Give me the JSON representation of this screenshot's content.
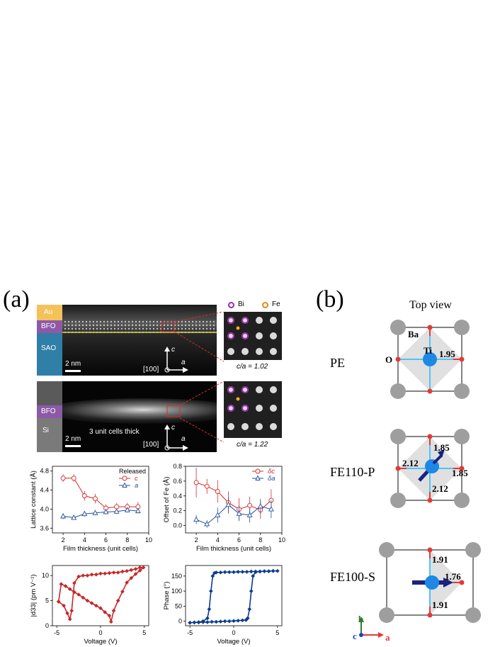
{
  "panel_a": {
    "label": "(a)",
    "tem_top": {
      "layers": [
        "Au",
        "BFO",
        "SAO"
      ],
      "scale": "2 nm",
      "axis_zone": "[100]",
      "axis_c": "c",
      "axis_a": "a",
      "inset_ratio": "c/a = 1.02",
      "legend_bi": "Bi",
      "legend_fe": "Fe"
    },
    "tem_bottom": {
      "layers": [
        "BFO",
        "Si"
      ],
      "caption": "3 unit cells thick",
      "scale": "2 nm",
      "axis_zone": "[100]",
      "axis_c": "c",
      "axis_a": "a",
      "inset_ratio": "c/a = 1.22"
    }
  },
  "panel_b": {
    "label": "(b)",
    "top_view": "Top view",
    "rows": [
      {
        "name": "PE",
        "atom_ba": "Ba",
        "atom_ti": "Ti",
        "atom_o": "O",
        "bond": "1.95"
      },
      {
        "name": "FE110-P",
        "bond_top": "1.85",
        "bond_right": "1.85",
        "bond_left": "2.12",
        "bond_bottom": "2.12"
      },
      {
        "name": "FE100-S",
        "bond_top": "1.91",
        "bond_right": "1.76",
        "bond_bottom": "1.91"
      }
    ],
    "axes": {
      "b": "b",
      "c": "c",
      "a": "a"
    },
    "colors": {
      "ti": "#1e88e5",
      "o": "#e02020",
      "ba": "#a0a0a0",
      "arrow": "#1a237e"
    }
  },
  "chart_data": [
    {
      "type": "line",
      "xlabel": "Film thickness (unit cells)",
      "ylabel": "Lattice constant (Å)",
      "legend_title": "Released",
      "xlim": [
        1,
        10
      ],
      "ylim": [
        3.5,
        4.9
      ],
      "xticks": [
        2,
        4,
        6,
        8,
        10
      ],
      "yticks": [
        3.6,
        4.0,
        4.4,
        4.8
      ],
      "x": [
        2,
        3,
        4,
        5,
        6,
        7,
        8,
        9
      ],
      "series": [
        {
          "name": "c",
          "color": "#d62728",
          "marker": "circle",
          "values": [
            4.65,
            4.65,
            4.28,
            4.22,
            4.02,
            4.05,
            4.05,
            4.05
          ],
          "err": [
            0.08,
            0.08,
            0.1,
            0.1,
            0.08,
            0.08,
            0.08,
            0.1
          ]
        },
        {
          "name": "a",
          "color": "#1f4e9c",
          "marker": "triangle",
          "values": [
            3.85,
            3.82,
            3.9,
            3.92,
            3.94,
            3.95,
            3.98,
            3.96
          ],
          "err": [
            0.06,
            0.04,
            0.06,
            0.05,
            0.05,
            0.05,
            0.05,
            0.05
          ]
        }
      ]
    },
    {
      "type": "line",
      "xlabel": "Film thickness (unit cells)",
      "ylabel": "Offset of Fe (Å)",
      "xlim": [
        1,
        10
      ],
      "ylim": [
        -0.1,
        0.8
      ],
      "xticks": [
        2,
        4,
        6,
        8,
        10
      ],
      "yticks": [
        0.0,
        0.2,
        0.4,
        0.6,
        0.8
      ],
      "x": [
        2,
        3,
        4,
        5,
        6,
        7,
        8,
        9
      ],
      "series": [
        {
          "name": "δc",
          "color": "#d62728",
          "marker": "circle",
          "values": [
            0.58,
            0.53,
            0.46,
            0.31,
            0.22,
            0.27,
            0.21,
            0.34
          ],
          "err": [
            0.2,
            0.1,
            0.15,
            0.15,
            0.15,
            0.12,
            0.12,
            0.15
          ]
        },
        {
          "name": "δa",
          "color": "#1f4e9c",
          "marker": "triangle",
          "values": [
            0.08,
            0.02,
            0.14,
            0.28,
            0.16,
            0.14,
            0.26,
            0.22
          ],
          "err": [
            0.06,
            0.05,
            0.1,
            0.1,
            0.1,
            0.1,
            0.1,
            0.12
          ]
        }
      ]
    },
    {
      "type": "line",
      "xlabel": "Voltage (V)",
      "ylabel": "|d33| (pm V⁻¹)",
      "xlim": [
        -5.5,
        5.5
      ],
      "ylim": [
        0,
        12
      ],
      "xticks": [
        -5,
        0,
        5
      ],
      "yticks": [
        0,
        5,
        10
      ],
      "series": [
        {
          "name": "",
          "color": "#c62828",
          "x": [
            -4.8,
            -4.2,
            -3.8,
            -3.5,
            -3.3,
            -3.0,
            -2.5,
            -2.0,
            -1.5,
            -1.0,
            -0.5,
            0.0,
            0.5,
            1.0,
            1.5,
            2.0,
            2.5,
            3.0,
            3.5,
            4.0,
            4.5,
            4.9,
            4.5,
            4.0,
            3.5,
            3.0,
            2.5,
            2.0,
            1.5,
            1.2,
            1.0,
            0.5,
            0.0,
            -0.5,
            -1.0,
            -1.5,
            -2.0,
            -2.5,
            -3.0,
            -3.5,
            -4.0,
            -4.5,
            -4.8
          ],
          "y": [
            4.8,
            4.0,
            2.5,
            1.3,
            3.0,
            8.5,
            9.8,
            10.0,
            10.0,
            10.2,
            10.2,
            10.4,
            10.4,
            10.5,
            10.6,
            10.6,
            10.8,
            10.9,
            11.1,
            11.3,
            11.6,
            11.6,
            11.0,
            10.3,
            9.5,
            8.6,
            6.8,
            5.0,
            3.0,
            0.8,
            2.0,
            2.7,
            3.5,
            4.0,
            4.5,
            5.0,
            5.6,
            6.2,
            6.7,
            7.3,
            7.9,
            8.3,
            4.8
          ]
        }
      ]
    },
    {
      "type": "line",
      "xlabel": "Voltage (V)",
      "ylabel": "Phase (°)",
      "xlim": [
        -5.5,
        5.5
      ],
      "ylim": [
        -15,
        185
      ],
      "xticks": [
        -5,
        0,
        5
      ],
      "yticks": [
        0,
        50,
        100,
        150
      ],
      "series": [
        {
          "name": "",
          "color": "#0d3d8c",
          "x": [
            -5.0,
            -4.5,
            -4.0,
            -3.5,
            -3.0,
            -2.8,
            -2.6,
            -2.4,
            -2.2,
            -2.0,
            -1.5,
            -1.0,
            -0.5,
            0.0,
            0.5,
            1.0,
            1.5,
            2.0,
            2.5,
            3.0,
            3.5,
            4.0,
            4.5,
            5.0,
            4.5,
            4.0,
            3.5,
            3.0,
            2.5,
            2.2,
            2.0,
            1.8,
            1.6,
            1.4,
            1.0,
            0.5,
            0.0,
            -0.5,
            -1.0,
            -1.5,
            -2.0,
            -2.5,
            -3.0,
            -3.5,
            -4.0,
            -4.5,
            -5.0
          ],
          "y": [
            -5,
            -4,
            -3,
            0,
            10,
            40,
            100,
            150,
            160,
            162,
            162,
            163,
            163,
            163,
            164,
            164,
            164,
            165,
            165,
            165,
            166,
            166,
            167,
            167,
            167,
            166,
            166,
            165,
            163,
            150,
            100,
            40,
            10,
            4,
            3,
            2,
            1,
            0,
            0,
            -1,
            -2,
            -2,
            -3,
            -3,
            -4,
            -4,
            -5
          ]
        }
      ]
    }
  ]
}
